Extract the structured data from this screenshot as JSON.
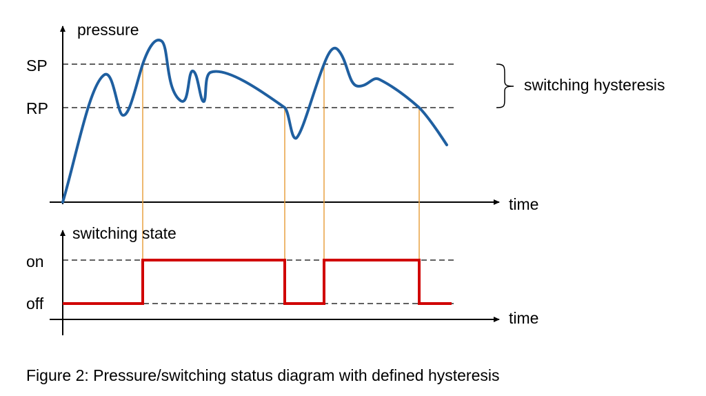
{
  "upper": {
    "y_label": "pressure",
    "x_label": "time",
    "sp_label": "SP",
    "rp_label": "RP",
    "hysteresis_label": "switching hysteresis"
  },
  "lower": {
    "y_label": "switching state",
    "x_label": "time",
    "on_label": "on",
    "off_label": "off"
  },
  "caption": "Figure 2: Pressure/switching status diagram with defined hysteresis"
}
